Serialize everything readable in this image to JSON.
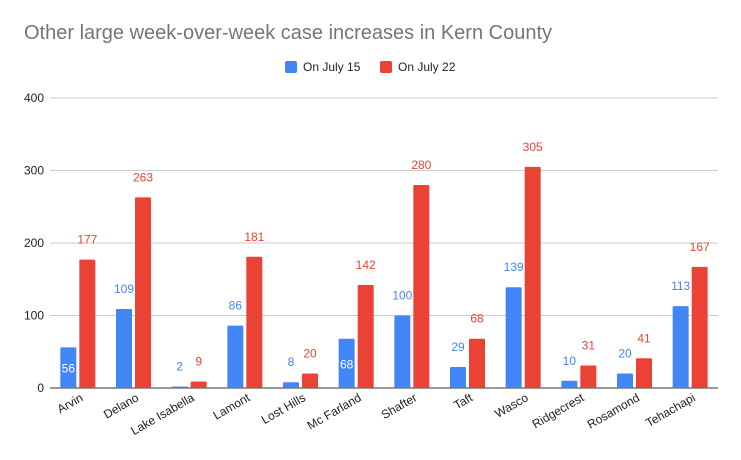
{
  "chart_data": {
    "type": "bar",
    "title": "Other large week-over-week case increases in Kern County",
    "xlabel": "",
    "ylabel": "",
    "ylim": [
      0,
      400
    ],
    "yticks": [
      0,
      100,
      200,
      300,
      400
    ],
    "grid": true,
    "legend_position": "top",
    "categories": [
      "Arvin",
      "Delano",
      "Lake Isabella",
      "Lamont",
      "Lost Hills",
      "Mc Farland",
      "Shafter",
      "Taft",
      "Wasco",
      "Ridgecrest",
      "Rosamond",
      "Tehachapi"
    ],
    "series": [
      {
        "name": "On July 15",
        "color": "#4285f4",
        "values": [
          56,
          109,
          2,
          86,
          8,
          68,
          100,
          29,
          139,
          10,
          20,
          113
        ]
      },
      {
        "name": "On July 22",
        "color": "#ea4335",
        "values": [
          177,
          263,
          9,
          181,
          20,
          142,
          280,
          68,
          305,
          31,
          41,
          167
        ]
      }
    ]
  }
}
